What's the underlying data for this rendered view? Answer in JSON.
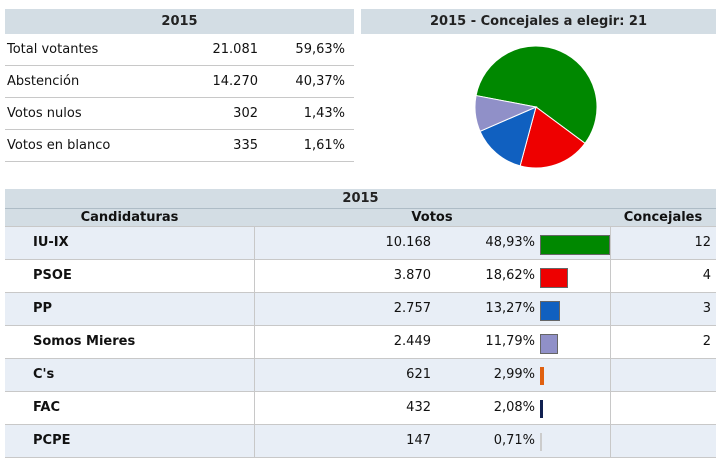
{
  "summary": {
    "year": "2015",
    "rows": [
      {
        "label": "Total votantes",
        "value": "21.081",
        "pct": "59,63%"
      },
      {
        "label": "Abstención",
        "value": "14.270",
        "pct": "40,37%"
      },
      {
        "label": "Votos nulos",
        "value": "302",
        "pct": "1,43%"
      },
      {
        "label": "Votos en blanco",
        "value": "335",
        "pct": "1,61%"
      }
    ]
  },
  "pie": {
    "title": "2015 - Concejales a elegir: 21"
  },
  "results": {
    "year": "2015",
    "headers": {
      "candidates": "Candidaturas",
      "votes": "Votos",
      "seats": "Concejales"
    },
    "rows": [
      {
        "name": "IU-IX",
        "votes": "10.168",
        "pct": "48,93%",
        "share": 48.93,
        "seats": "12",
        "color": "#008800"
      },
      {
        "name": "PSOE",
        "votes": "3.870",
        "pct": "18,62%",
        "share": 18.62,
        "seats": "4",
        "color": "#ee0000"
      },
      {
        "name": "PP",
        "votes": "2.757",
        "pct": "13,27%",
        "share": 13.27,
        "seats": "3",
        "color": "#1060c0"
      },
      {
        "name": "Somos Mieres",
        "votes": "2.449",
        "pct": "11,79%",
        "share": 11.79,
        "seats": "2",
        "color": "#9090c8"
      },
      {
        "name": "C's",
        "votes": "621",
        "pct": "2,99%",
        "share": 2.99,
        "seats": "",
        "color": "#e06010"
      },
      {
        "name": "FAC",
        "votes": "432",
        "pct": "2,08%",
        "share": 2.08,
        "seats": "",
        "color": "#102050"
      },
      {
        "name": "PCPE",
        "votes": "147",
        "pct": "0,71%",
        "share": 0.71,
        "seats": "",
        "color": "#cccccc"
      }
    ]
  },
  "chart_data": [
    {
      "type": "pie",
      "title": "2015 - Concejales a elegir: 21",
      "slices": [
        {
          "name": "IU-IX",
          "value": 12,
          "color": "#008800"
        },
        {
          "name": "PSOE",
          "value": 4,
          "color": "#ee0000"
        },
        {
          "name": "PP",
          "value": 3,
          "color": "#1060c0"
        },
        {
          "name": "Somos Mieres",
          "value": 2,
          "color": "#9090c8"
        }
      ]
    },
    {
      "type": "bar",
      "categories": [
        "IU-IX",
        "PSOE",
        "PP",
        "Somos Mieres",
        "C's",
        "FAC",
        "PCPE"
      ],
      "values": [
        48.93,
        18.62,
        13.27,
        11.79,
        2.99,
        2.08,
        0.71
      ]
    }
  ]
}
